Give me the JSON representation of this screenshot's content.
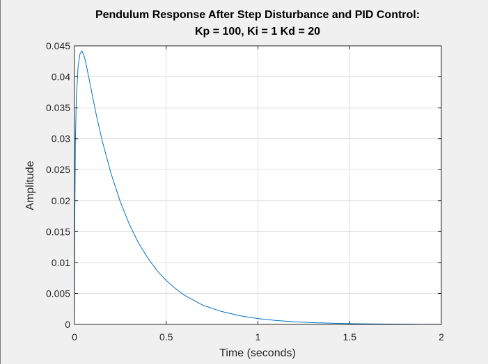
{
  "chart_data": {
    "type": "line",
    "title": [
      "Pendulum Response After Step Disturbance and PID Control:",
      "Kp = 100, Ki = 1 Kd = 20"
    ],
    "xlabel": "Time (seconds)",
    "ylabel": "Amplitude",
    "xlim": [
      0,
      2
    ],
    "ylim": [
      0,
      0.045
    ],
    "xticks": [
      0,
      0.5,
      1,
      1.5,
      2
    ],
    "xtick_labels": [
      "0",
      "0.5",
      "1",
      "1.5",
      "2"
    ],
    "yticks": [
      0,
      0.005,
      0.01,
      0.015,
      0.02,
      0.025,
      0.03,
      0.035,
      0.04,
      0.045
    ],
    "ytick_labels": [
      "0",
      "0.005",
      "0.01",
      "0.015",
      "0.02",
      "0.025",
      "0.03",
      "0.035",
      "0.04",
      "0.045"
    ],
    "grid": true,
    "series": [
      {
        "color": "#0072BD",
        "x": [
          0,
          0.002,
          0.005,
          0.01,
          0.02,
          0.03,
          0.04,
          0.05,
          0.06,
          0.08,
          0.1,
          0.12,
          0.15,
          0.2,
          0.25,
          0.3,
          0.35,
          0.4,
          0.45,
          0.5,
          0.55,
          0.6,
          0.7,
          0.8,
          0.9,
          1.0,
          1.1,
          1.2,
          1.3,
          1.4,
          1.5,
          1.6,
          1.7,
          1.8,
          1.9,
          2.0
        ],
        "y": [
          0,
          0.0185,
          0.0295,
          0.0365,
          0.0418,
          0.0437,
          0.0442,
          0.0436,
          0.0425,
          0.0396,
          0.0366,
          0.0337,
          0.0298,
          0.0243,
          0.0198,
          0.0161,
          0.0131,
          0.0107,
          0.0087,
          0.0071,
          0.0058,
          0.0047,
          0.0031,
          0.0021,
          0.0014,
          0.00094,
          0.00063,
          0.00042,
          0.00028,
          0.00019,
          0.00013,
          8e-05,
          5e-05,
          4e-05,
          2e-05,
          1e-05
        ]
      }
    ]
  },
  "colors": {
    "figure_bg": "#f0f0f0",
    "axes_bg": "#ffffff",
    "grid": "#dfdfdf",
    "axis_line": "#262626"
  }
}
